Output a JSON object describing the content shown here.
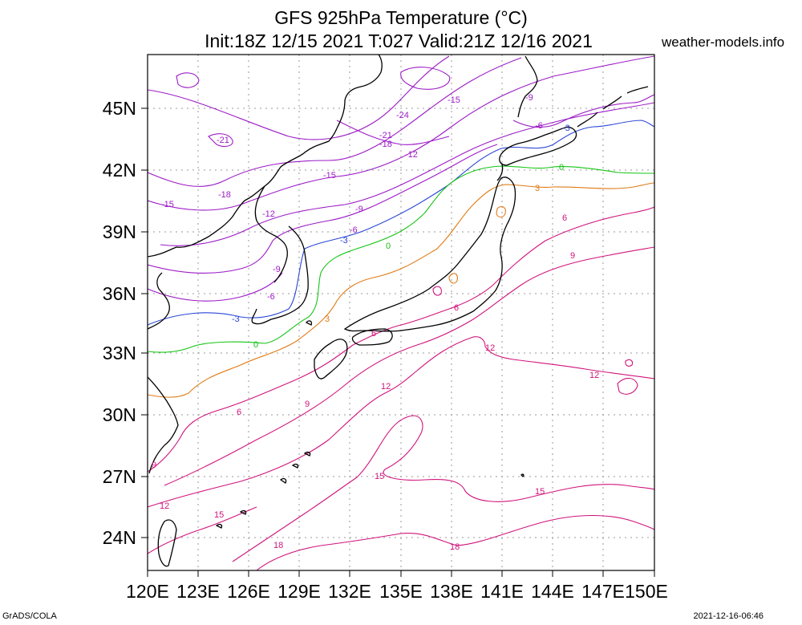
{
  "header": {
    "title_line1": "GFS 925hPa Temperature (°C)",
    "title_line2": "Init:18Z 12/15 2021 T:027 Valid:21Z 12/16 2021",
    "brand": "weather-models.info"
  },
  "footer": {
    "left": "GrADS/COLA",
    "right": "2021-12-16-06:46"
  },
  "map": {
    "lon_range": [
      120,
      150
    ],
    "lat_range": [
      22.5,
      47.5
    ],
    "lat_labels": [
      "45N",
      "42N",
      "39N",
      "36N",
      "33N",
      "30N",
      "27N",
      "24N"
    ],
    "lon_labels": [
      "120E",
      "123E",
      "126E",
      "129E",
      "132E",
      "135E",
      "138E",
      "141E",
      "144E",
      "147E",
      "150E"
    ],
    "contour_colors": {
      "cold": "#9c1cc6",
      "neg3": "#2a46d6",
      "zero": "#14c414",
      "pos3": "#e07a14",
      "warm": "#d0147c"
    },
    "contour_labels": [
      "-24",
      "-21",
      "-18",
      "-15",
      "-12",
      "-9",
      "-6",
      "-3",
      "0",
      "3",
      "6",
      "9",
      "12",
      "15",
      "18"
    ]
  }
}
